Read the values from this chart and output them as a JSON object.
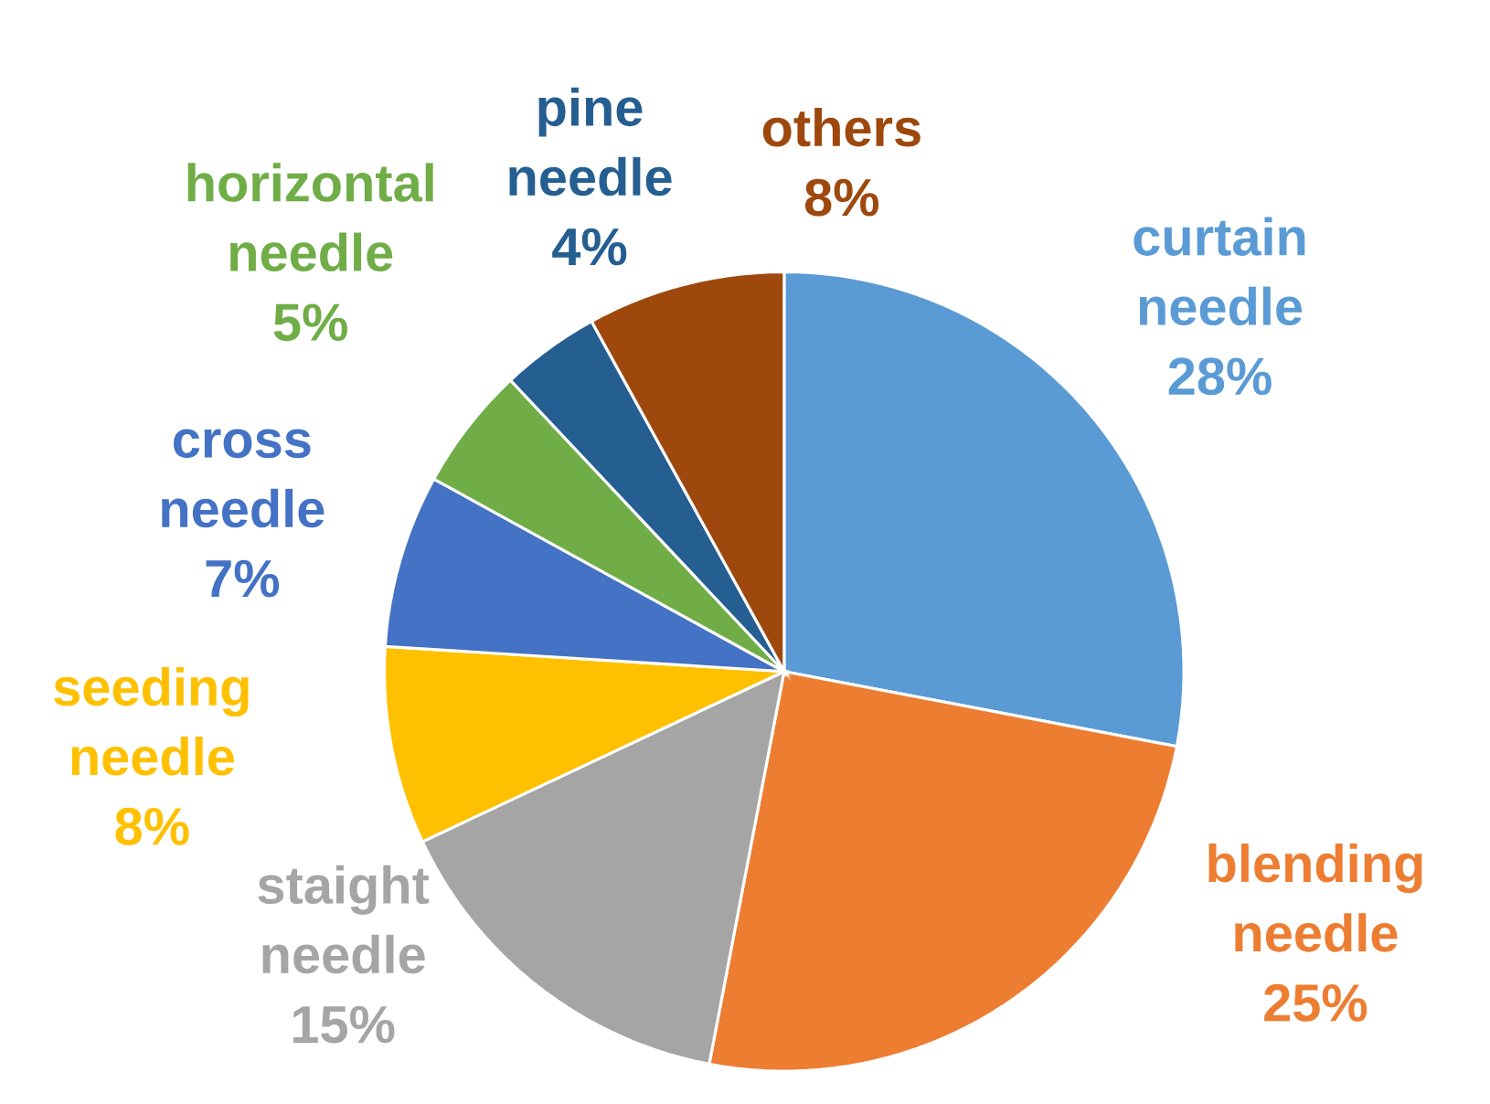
{
  "chart_data": {
    "type": "pie",
    "categories": [
      "curtain needle",
      "blending needle",
      "staight needle",
      "seeding needle",
      "cross needle",
      "horizontal needle",
      "pine needle",
      "others"
    ],
    "values": [
      28,
      25,
      15,
      8,
      7,
      5,
      4,
      8
    ],
    "value_labels": [
      "28%",
      "25%",
      "15%",
      "8%",
      "7%",
      "5%",
      "4%",
      "8%"
    ],
    "colors": [
      "#5b9bd5",
      "#ed7d31",
      "#a5a5a5",
      "#ffc000",
      "#4472c4",
      "#70ad47",
      "#255e91",
      "#9e480e"
    ]
  }
}
